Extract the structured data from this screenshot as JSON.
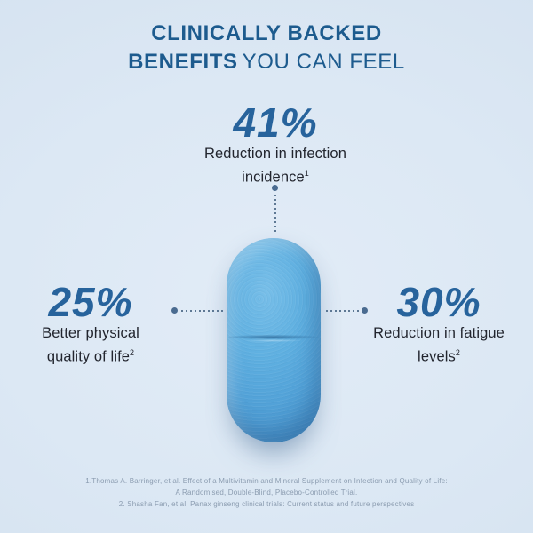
{
  "title": {
    "line1": "CLINICALLY BACKED",
    "line2_bold": "BENEFITS",
    "line2_light": "YOU CAN FEEL"
  },
  "stats": {
    "infection": {
      "value": "41%",
      "label_line1": "Reduction in infection",
      "label_line2": "incidence",
      "footnote_ref": "1"
    },
    "quality": {
      "value": "25%",
      "label_line1": "Better physical",
      "label_line2": "quality of life",
      "footnote_ref": "2"
    },
    "fatigue": {
      "value": "30%",
      "label_line1": "Reduction in fatigue",
      "label_line2": "levels",
      "footnote_ref": "2"
    }
  },
  "footnotes": {
    "line1": "1.Thomas A. Barringer, et al. Effect of a Multivitamin and Mineral Supplement on Infection and Quality of Life:",
    "line2": "A Randomised, Double-Blind, Placebo-Controlled Trial.",
    "line3": "2. Shasha Fan, et al. Panax ginseng clinical trials: Current status and future perspectives"
  },
  "colors": {
    "background": "#dce8f4",
    "title_blue": "#1d5b8e",
    "stat_blue": "#27639c",
    "label_text": "#22252e",
    "pill_blue": "#58aade",
    "connector": "#4a6b90",
    "footnote_text": "#8b9cb0"
  }
}
